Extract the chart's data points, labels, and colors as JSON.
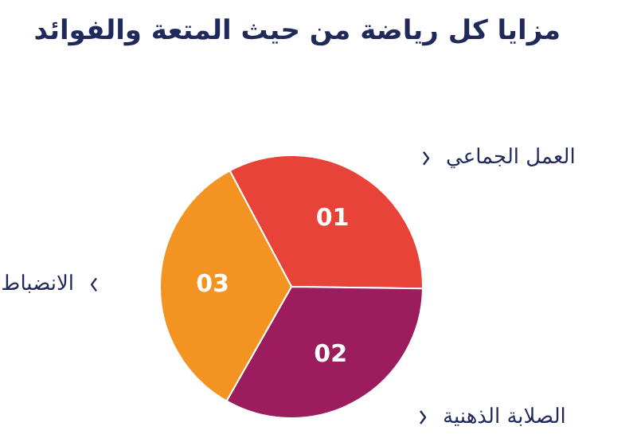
{
  "chart_data": {
    "type": "pie",
    "title": "مزايا كل رياضة من حيث المتعة والفوائد",
    "categories": [
      "العمل الجماعي",
      "الصلابة الذهنية",
      "الانضباط"
    ],
    "values": [
      33,
      33,
      34
    ],
    "colors": [
      "#e84339",
      "#9b1d5e",
      "#f39321"
    ],
    "annotations": [
      "01",
      "02",
      "03"
    ],
    "legend": false
  }
}
